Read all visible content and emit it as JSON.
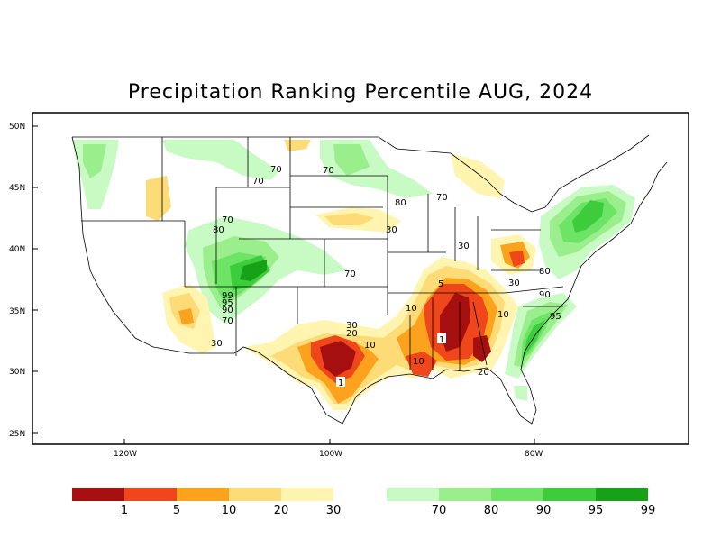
{
  "title": "Precipitation Ranking Percentile AUG, 2024",
  "axes": {
    "latitude_labels": [
      "50N",
      "45N",
      "40N",
      "35N",
      "30N",
      "25N"
    ],
    "longitude_labels": [
      "120W",
      "100W",
      "80W"
    ]
  },
  "contour_labels": [
    "70",
    "70",
    "70",
    "70",
    "80",
    "70",
    "80",
    "30",
    "70",
    "99",
    "95",
    "90",
    "70",
    "30",
    "30",
    "30",
    "20",
    "10",
    "10",
    "5",
    "1",
    "1",
    "10",
    "20",
    "10",
    "30",
    "80",
    "90",
    "95"
  ],
  "legend": {
    "dry": [
      {
        "label": "1",
        "color": "#a50f0f"
      },
      {
        "label": "5",
        "color": "#f0461b"
      },
      {
        "label": "10",
        "color": "#fca21c"
      },
      {
        "label": "20",
        "color": "#fddc78"
      },
      {
        "label": "30",
        "color": "#fff5b0"
      }
    ],
    "wet": [
      {
        "label": "70",
        "color": "#c8fac4"
      },
      {
        "label": "80",
        "color": "#9bee8c"
      },
      {
        "label": "90",
        "color": "#6ee466"
      },
      {
        "label": "95",
        "color": "#3ccc3c"
      },
      {
        "label": "99",
        "color": "#16a116"
      }
    ]
  }
}
